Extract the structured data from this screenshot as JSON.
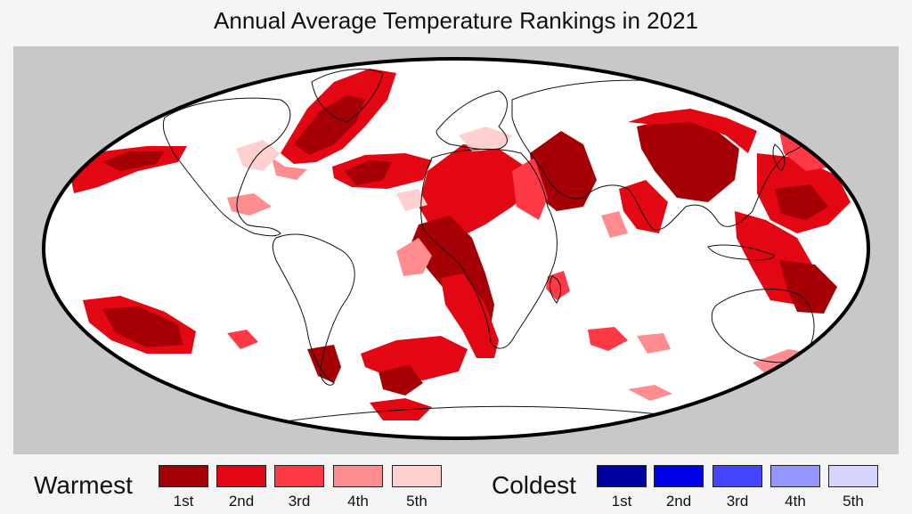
{
  "title": "Annual Average Temperature Rankings in 2021",
  "legend": {
    "warmest": {
      "title": "Warmest",
      "items": [
        {
          "label": "1st",
          "color": "#a50006"
        },
        {
          "label": "2nd",
          "color": "#e30613"
        },
        {
          "label": "3rd",
          "color": "#ff3a46"
        },
        {
          "label": "4th",
          "color": "#ff8c8e"
        },
        {
          "label": "5th",
          "color": "#ffd0d0"
        }
      ]
    },
    "coldest": {
      "title": "Coldest",
      "items": [
        {
          "label": "1st",
          "color": "#00009c"
        },
        {
          "label": "2nd",
          "color": "#0000e6"
        },
        {
          "label": "3rd",
          "color": "#4545ff"
        },
        {
          "label": "4th",
          "color": "#9595ff"
        },
        {
          "label": "5th",
          "color": "#d5d5ff"
        }
      ]
    }
  },
  "map": {
    "projection": "mollweide",
    "ocean_land_color": "#ffffff",
    "background_color": "#c8c8c8",
    "outline_color": "#000000"
  }
}
